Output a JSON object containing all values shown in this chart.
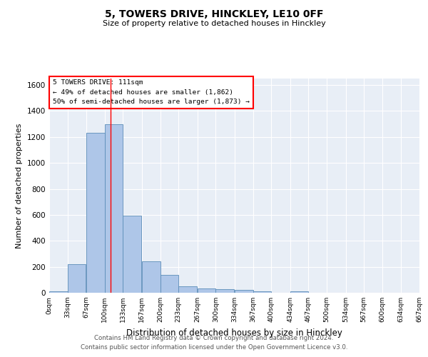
{
  "title1": "5, TOWERS DRIVE, HINCKLEY, LE10 0FF",
  "title2": "Size of property relative to detached houses in Hinckley",
  "xlabel": "Distribution of detached houses by size in Hinckley",
  "ylabel": "Number of detached properties",
  "footer1": "Contains HM Land Registry data © Crown copyright and database right 2024.",
  "footer2": "Contains public sector information licensed under the Open Government Licence v3.0.",
  "annotation_line1": "5 TOWERS DRIVE: 111sqm",
  "annotation_line2": "← 49% of detached houses are smaller (1,862)",
  "annotation_line3": "50% of semi-detached houses are larger (1,873) →",
  "bar_color": "#aec6e8",
  "bar_edge_color": "#5b8db8",
  "bg_color": "#e8eef6",
  "grid_color": "#ffffff",
  "red_line_x": 111,
  "bin_edges": [
    0,
    33,
    67,
    100,
    133,
    167,
    200,
    233,
    267,
    300,
    334,
    367,
    400,
    434,
    467,
    500,
    534,
    567,
    600,
    634,
    667
  ],
  "bar_heights": [
    10,
    220,
    1230,
    1300,
    595,
    242,
    140,
    52,
    33,
    25,
    23,
    10,
    0,
    12,
    0,
    0,
    0,
    0,
    0,
    0
  ],
  "ylim": [
    0,
    1650
  ],
  "xlim": [
    0,
    667
  ],
  "yticks": [
    0,
    200,
    400,
    600,
    800,
    1000,
    1200,
    1400,
    1600
  ],
  "tick_labels": [
    "0sqm",
    "33sqm",
    "67sqm",
    "100sqm",
    "133sqm",
    "167sqm",
    "200sqm",
    "233sqm",
    "267sqm",
    "300sqm",
    "334sqm",
    "367sqm",
    "400sqm",
    "434sqm",
    "467sqm",
    "500sqm",
    "534sqm",
    "567sqm",
    "600sqm",
    "634sqm",
    "667sqm"
  ],
  "tick_positions": [
    0,
    33,
    67,
    100,
    133,
    167,
    200,
    233,
    267,
    300,
    334,
    367,
    400,
    434,
    467,
    500,
    534,
    567,
    600,
    634,
    667
  ]
}
